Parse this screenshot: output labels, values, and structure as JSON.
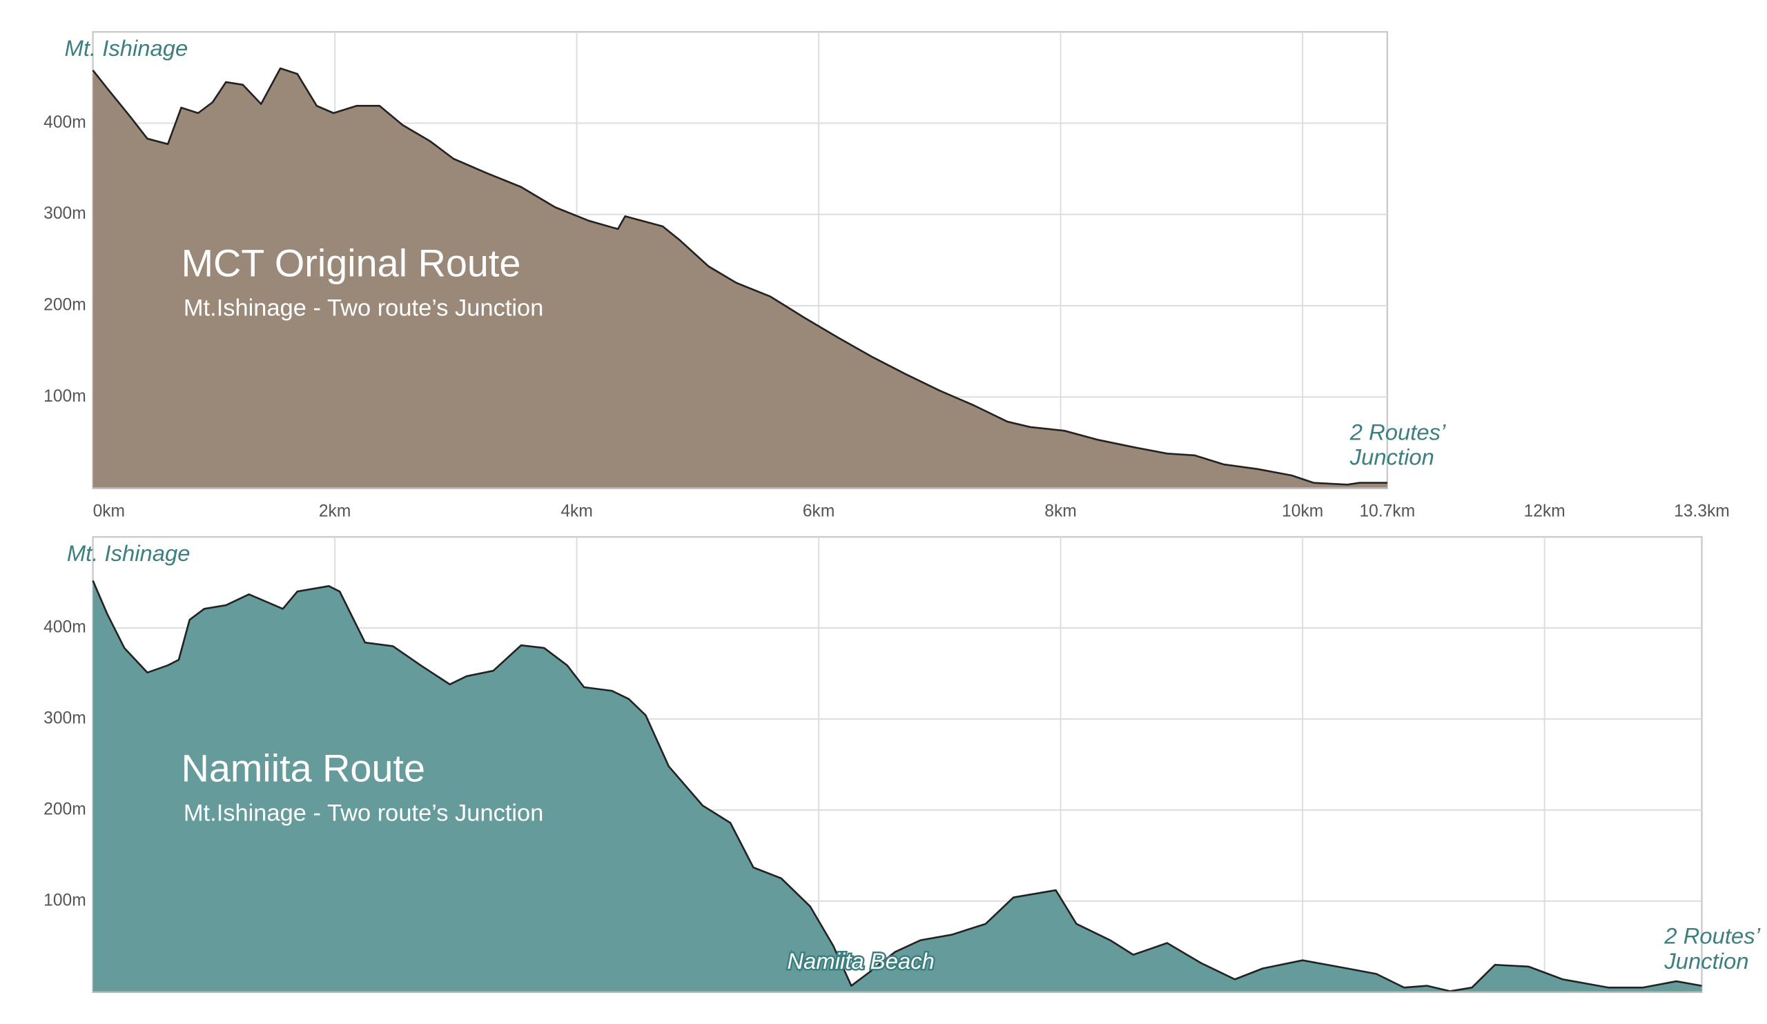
{
  "shared_x_axis": {
    "ticks": [
      {
        "value": 0,
        "label": "0km"
      },
      {
        "value": 2,
        "label": "2km"
      },
      {
        "value": 4,
        "label": "4km"
      },
      {
        "value": 6,
        "label": "6km"
      },
      {
        "value": 8,
        "label": "8km"
      },
      {
        "value": 10,
        "label": "10km"
      },
      {
        "value": 10.7,
        "label": "10.7km"
      },
      {
        "value": 12,
        "label": "12km"
      },
      {
        "value": 13.3,
        "label": "13.3km"
      }
    ]
  },
  "chart_data": [
    {
      "type": "area",
      "title": "MCT Original Route",
      "subtitle": "Mt.Ishinage - Two route’s Junction",
      "start_label": "Mt. Ishinage",
      "end_label": [
        "2 Routes’",
        "Junction"
      ],
      "color": "#9a8878",
      "xlim": [
        0,
        10.7
      ],
      "xticks": [
        2,
        4,
        6,
        8,
        10
      ],
      "ylim": [
        0,
        500
      ],
      "yticks": [
        {
          "value": 100,
          "label": "100m"
        },
        {
          "value": 200,
          "label": "200m"
        },
        {
          "value": 300,
          "label": "300m"
        },
        {
          "value": 400,
          "label": "400m"
        }
      ],
      "grid": true,
      "x": [
        0,
        0.12,
        0.31,
        0.45,
        0.62,
        0.73,
        0.87,
        0.99,
        1.1,
        1.24,
        1.39,
        1.55,
        1.69,
        1.85,
        1.99,
        2.18,
        2.37,
        2.56,
        2.79,
        2.98,
        3.26,
        3.54,
        3.82,
        4.1,
        4.34,
        4.4,
        4.71,
        4.85,
        5.09,
        5.32,
        5.6,
        5.88,
        6.16,
        6.44,
        6.72,
        7.0,
        7.28,
        7.56,
        7.75,
        8.03,
        8.31,
        8.6,
        8.88,
        9.11,
        9.35,
        9.63,
        9.91,
        10.09,
        10.37,
        10.47,
        10.7
      ],
      "values": [
        458,
        438,
        407,
        383,
        377,
        417,
        411,
        423,
        445,
        442,
        421,
        460,
        454,
        419,
        411,
        419,
        419,
        398,
        380,
        361,
        345,
        330,
        308,
        293,
        284,
        298,
        287,
        272,
        243,
        225,
        210,
        187,
        165,
        144,
        125,
        107,
        91,
        73,
        67,
        63,
        53,
        45,
        38,
        36,
        26,
        21,
        14,
        6,
        4,
        6,
        6
      ]
    },
    {
      "type": "area",
      "title": "Namiita Route",
      "subtitle": "Mt.Ishinage - Two route’s Junction",
      "start_label": "Mt. Ishinage",
      "end_label": [
        "2 Routes’",
        "Junction"
      ],
      "annotations": [
        "Namiita Beach"
      ],
      "color": "#659b9a",
      "xlim": [
        0,
        13.3
      ],
      "xticks": [
        2,
        4,
        6,
        8,
        10,
        12
      ],
      "ylim": [
        0,
        500
      ],
      "yticks": [
        {
          "value": 100,
          "label": "100m"
        },
        {
          "value": 200,
          "label": "200m"
        },
        {
          "value": 300,
          "label": "300m"
        },
        {
          "value": 400,
          "label": "400m"
        }
      ],
      "grid": true,
      "x": [
        0,
        0.12,
        0.26,
        0.45,
        0.62,
        0.71,
        0.8,
        0.92,
        1.1,
        1.29,
        1.57,
        1.69,
        1.95,
        2.04,
        2.25,
        2.48,
        2.71,
        2.95,
        3.09,
        3.31,
        3.54,
        3.73,
        3.92,
        4.06,
        4.29,
        4.43,
        4.57,
        4.76,
        5.04,
        5.27,
        5.46,
        5.69,
        5.93,
        6.12,
        6.27,
        6.42,
        6.63,
        6.84,
        7.1,
        7.38,
        7.61,
        7.96,
        8.13,
        8.41,
        8.6,
        8.88,
        9.16,
        9.44,
        9.67,
        10.0,
        10.37,
        10.61,
        10.84,
        11.03,
        11.22,
        11.4,
        11.59,
        11.87,
        12.15,
        12.53,
        12.81,
        13.09,
        13.3
      ],
      "values": [
        452,
        415,
        378,
        351,
        359,
        365,
        409,
        421,
        425,
        437,
        421,
        440,
        446,
        440,
        384,
        380,
        359,
        338,
        347,
        353,
        381,
        378,
        359,
        335,
        331,
        322,
        304,
        248,
        205,
        186,
        137,
        125,
        94,
        51,
        7,
        22,
        44,
        57,
        63,
        75,
        104,
        112,
        75,
        57,
        41,
        54,
        32,
        14,
        26,
        35,
        26,
        20,
        5,
        7,
        1,
        5,
        30,
        28,
        14,
        5,
        5,
        12,
        7
      ]
    }
  ]
}
